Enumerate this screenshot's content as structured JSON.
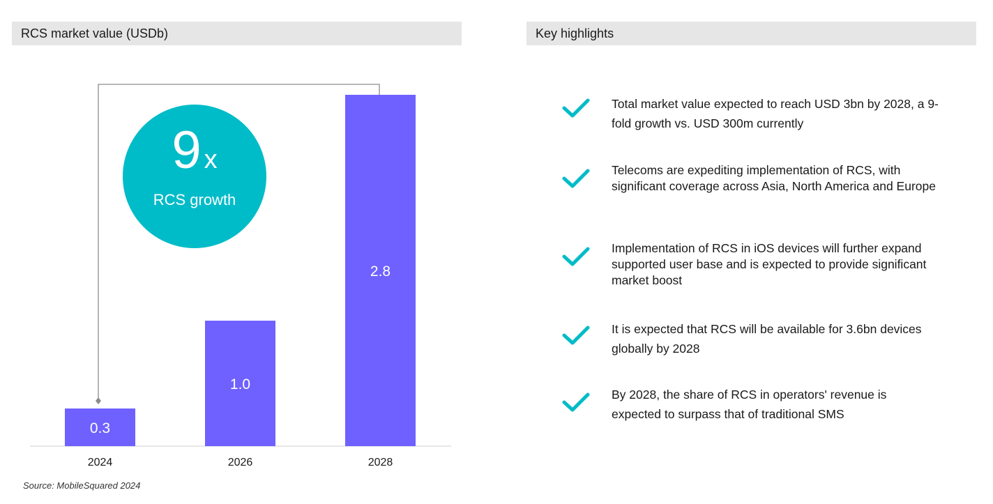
{
  "chart_panel": {
    "header": "RCS market value (USDb)"
  },
  "highlights_panel": {
    "header": "Key highlights",
    "items": [
      "Total market value expected to reach USD 3bn by 2028, a 9-fold growth vs. USD 300m currently",
      "Telecoms are expediting implementation of RCS, with significant coverage across Asia, North America and Europe",
      "Implementation of RCS in iOS devices will further expand supported user base and is expected to provide significant market boost",
      "It is expected that RCS will be available for 3.6bn devices globally by 2028",
      "By 2028, the share of RCS in operators' revenue is expected to surpass that of traditional SMS"
    ]
  },
  "growth_callout": {
    "value": "9",
    "suffix": "x",
    "label": "RCS growth"
  },
  "source": "Source: MobileSquared 2024",
  "colors": {
    "bar": "#6f61ff",
    "accent": "#00bcc8",
    "header_bg": "#e6e6e6"
  },
  "chart_data": {
    "type": "bar",
    "title": "RCS market value (USDb)",
    "categories": [
      "2024",
      "2026",
      "2028"
    ],
    "values": [
      0.3,
      1.0,
      2.8
    ],
    "labels": [
      "0.3",
      "1.0",
      "2.8"
    ],
    "ylim": [
      0,
      3
    ],
    "grid": false,
    "legend": "none"
  }
}
